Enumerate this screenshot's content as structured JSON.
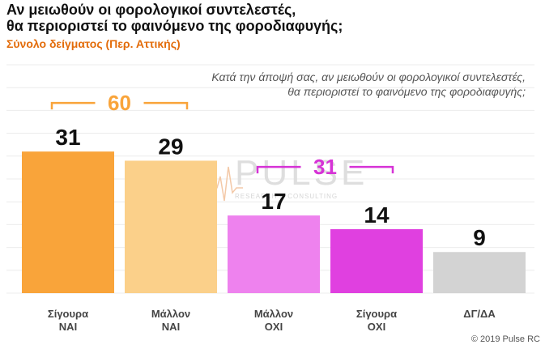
{
  "title_line1": "Αν μειωθούν οι φορολογικοί συντελεστές,",
  "title_line2": "θα περιοριστεί το φαινόμενο της φοροδιαφυγής;",
  "subtitle": "Σύνολο δείγματος (Περ. Αττικής)",
  "question_line1": "Κατά την άποψή σας, αν μειωθούν οι φορολογικοί συντελεστές,",
  "question_line2": "θα περιοριστεί το φαινόμενο της φοροδιαφυγής;",
  "copyright": "© 2019 Pulse RC",
  "watermark": {
    "main": "PULSE",
    "sub": "RESEARCH & CONSULTING"
  },
  "chart_data": {
    "type": "bar",
    "categories": [
      [
        "Σίγουρα",
        "ΝΑΙ"
      ],
      [
        "Μάλλον",
        "ΝΑΙ"
      ],
      [
        "Μάλλον",
        "ΟΧΙ"
      ],
      [
        "Σίγουρα",
        "ΟΧΙ"
      ],
      [
        "ΔΓ/ΔΑ"
      ]
    ],
    "values": [
      31,
      29,
      17,
      14,
      9
    ],
    "colors": [
      "#f9a43a",
      "#fbd08a",
      "#ee82ee",
      "#e040e0",
      "#d3d3d3"
    ],
    "ylim": [
      0,
      50
    ],
    "grid": true,
    "groups": [
      {
        "value": "60",
        "from": 0,
        "to": 1,
        "color": "#f9a43a"
      },
      {
        "value": "31",
        "from": 2,
        "to": 3,
        "color": "#d633d6"
      }
    ]
  }
}
